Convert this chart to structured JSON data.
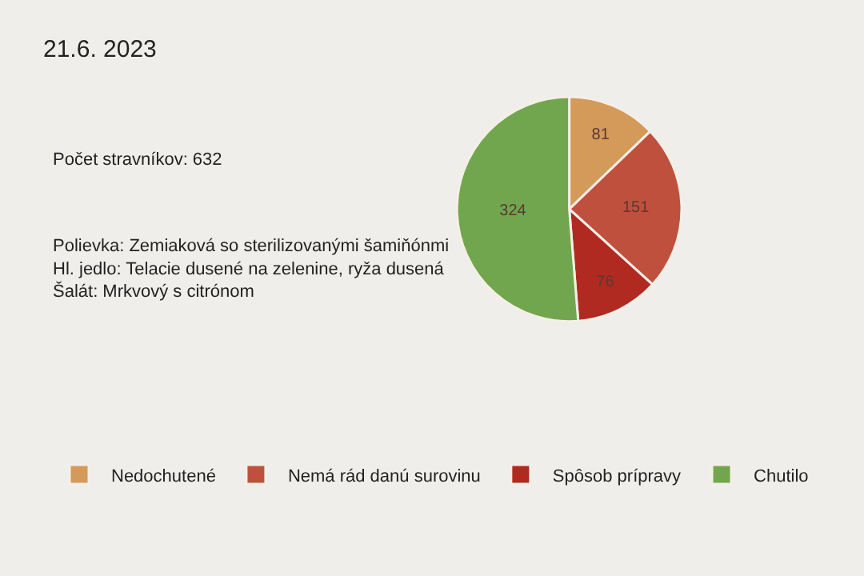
{
  "chart_data": {
    "type": "pie",
    "title": "21.6. 2023",
    "annotations": [
      "Počet stravníkov: 632",
      "Polievka: Zemiaková so sterilizovanými šamiňónmi\nHl. jedlo: Telacie dusené na zelenine, ryža dusená\nŠalát: Mrkvový s citrónom"
    ],
    "categories": [
      "Nedochutené",
      "Nemá rád danú surovinu",
      "Spôsob prípravy",
      "Chutilo"
    ],
    "values": [
      81,
      151,
      76,
      324
    ],
    "colors": [
      "#d49a5a",
      "#c0503e",
      "#b02a22",
      "#72a64e"
    ],
    "data_labels": true,
    "legend": "bottom"
  }
}
